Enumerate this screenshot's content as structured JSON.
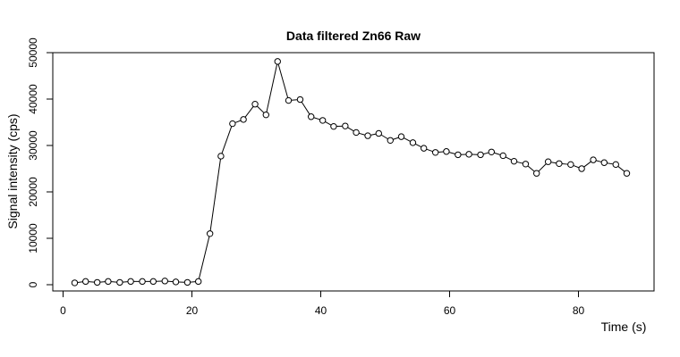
{
  "chart_data": {
    "type": "line",
    "title": "Data filtered Zn66 Raw",
    "xlabel": "Time (s)",
    "ylabel": "Signal intensity (cps)",
    "xlim": [
      0,
      92
    ],
    "ylim": [
      -1000,
      50000
    ],
    "x_ticks": [
      0,
      20,
      40,
      60,
      80
    ],
    "y_ticks": [
      0,
      10000,
      20000,
      30000,
      40000,
      50000
    ],
    "x_tick_labels": [
      "0",
      "20",
      "40",
      "60",
      "80"
    ],
    "y_tick_labels": [
      "0",
      "10000",
      "20000",
      "30000",
      "40000",
      "50000"
    ],
    "marker": "open-circle",
    "line_style": "solid",
    "grid": false,
    "series": [
      {
        "x": [
          1.8,
          3.5,
          5.3,
          7.0,
          8.8,
          10.5,
          12.3,
          14.0,
          15.8,
          17.5,
          19.3,
          21.0,
          22.8,
          24.5,
          26.3,
          28.0,
          29.8,
          31.5,
          33.3,
          35.0,
          36.8,
          38.5,
          40.3,
          42.0,
          43.8,
          45.5,
          47.3,
          49.0,
          50.8,
          52.5,
          54.3,
          56.0,
          57.8,
          59.5,
          61.3,
          63.0,
          64.8,
          66.5,
          68.3,
          70.0,
          71.8,
          73.5,
          75.3,
          77.0,
          78.8,
          80.5,
          82.3,
          84.0,
          85.8,
          87.5
        ],
        "values": [
          400,
          700,
          500,
          700,
          500,
          700,
          700,
          700,
          800,
          600,
          500,
          700,
          11000,
          27700,
          34700,
          35600,
          38900,
          36600,
          48100,
          39700,
          39900,
          36200,
          35400,
          34100,
          34200,
          32800,
          32100,
          32600,
          31100,
          31900,
          30600,
          29400,
          28500,
          28700,
          28000,
          28100,
          28000,
          28600,
          27800,
          26600,
          26000,
          24000,
          26500,
          26100,
          25900,
          25000,
          26900,
          26300,
          25900,
          24000
        ]
      }
    ]
  }
}
